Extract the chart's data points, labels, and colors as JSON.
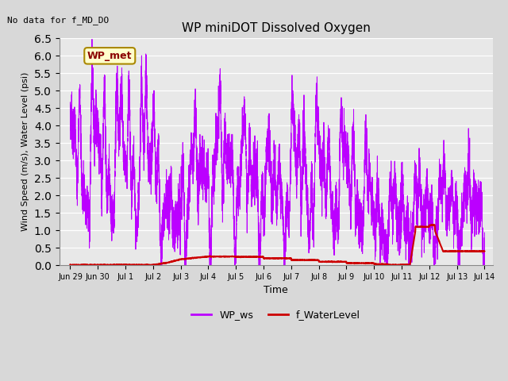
{
  "title": "WP miniDOT Dissolved Oxygen",
  "top_left_text": "No data for f_MD_DO",
  "ylabel": "Wind Speed (m/s), Water Level (psi)",
  "xlabel": "Time",
  "ylim": [
    0.0,
    6.5
  ],
  "yticks": [
    0.0,
    0.5,
    1.0,
    1.5,
    2.0,
    2.5,
    3.0,
    3.5,
    4.0,
    4.5,
    5.0,
    5.5,
    6.0,
    6.5
  ],
  "xlim_start": 0.6,
  "xlim_end": 16.3,
  "bg_color": "#e0e0e0",
  "plot_bg_color": "#e8e8e8",
  "wp_ws_color": "#bb00ff",
  "f_wl_color": "#cc0000",
  "legend_wp_ws_label": "WP_ws",
  "legend_wl_label": "f_WaterLevel",
  "annotation_label": "WP_met",
  "annotation_bg": "#ffffcc",
  "annotation_edge": "#aa8800",
  "tick_positions": [
    1,
    2,
    3,
    4,
    5,
    6,
    7,
    8,
    9,
    10,
    11,
    12,
    13,
    14,
    15,
    16
  ],
  "tick_labels": [
    "Jun 29",
    "Jun 30",
    "Jul 1",
    "Jul 2",
    "Jul 3",
    "Jul 4",
    "Jul 5",
    "Jul 6",
    "Jul 7",
    "Jul 8",
    "Jul 9",
    "Jul 10",
    "Jul 11",
    "Jul 12",
    "Jul 13",
    "Jul 14"
  ]
}
